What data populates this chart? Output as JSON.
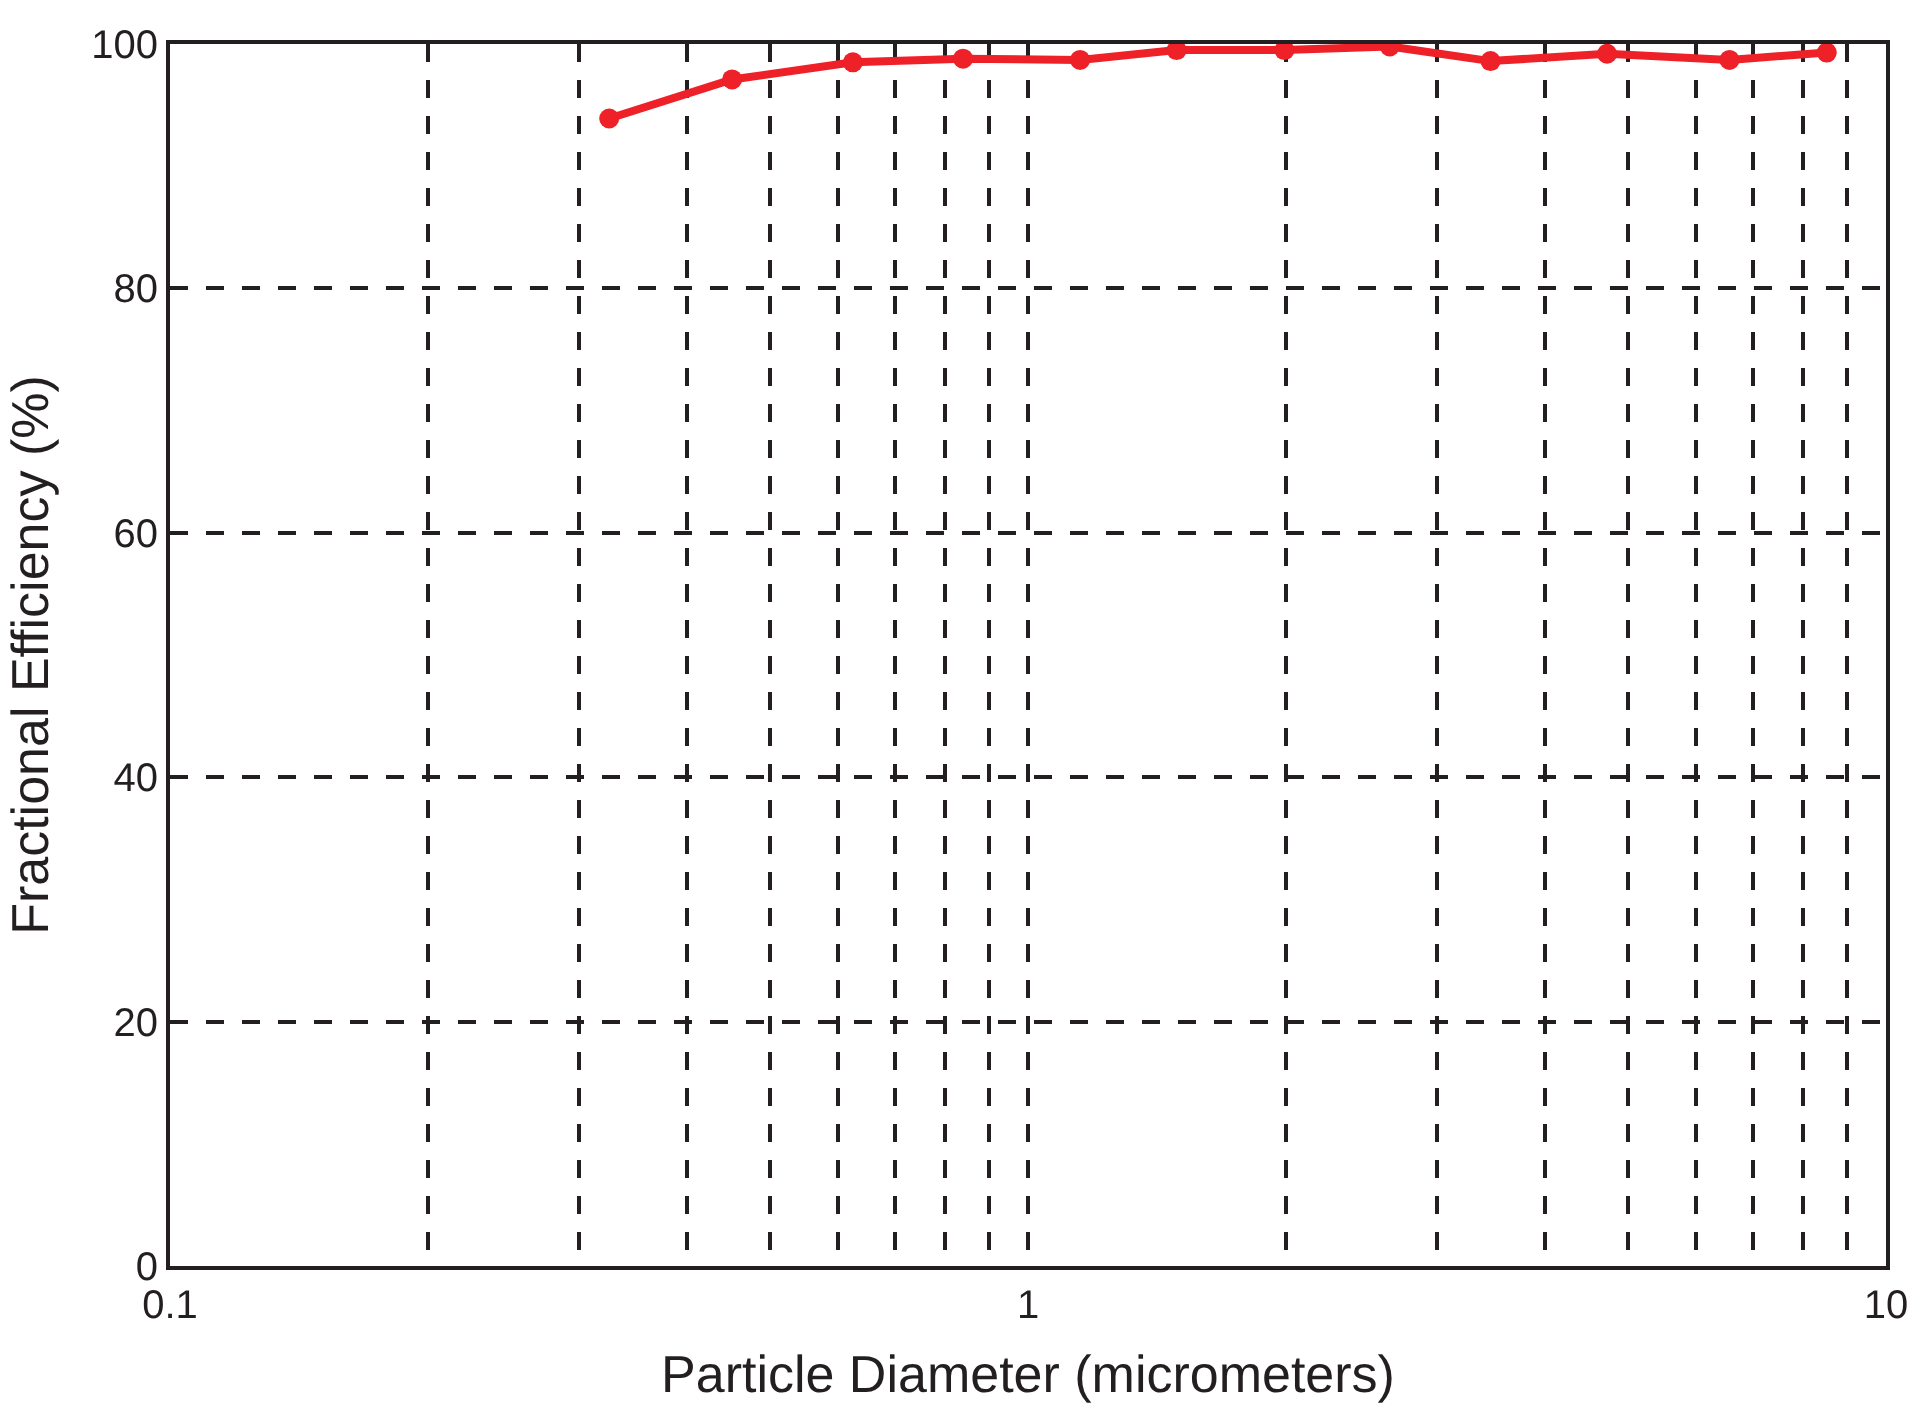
{
  "chart_data": {
    "type": "line",
    "xlabel": "Particle Diameter (micrometers)",
    "ylabel": "Fractional Efficiency (%)",
    "x": [
      0.325,
      0.452,
      0.625,
      0.84,
      1.15,
      1.49,
      1.99,
      2.64,
      3.46,
      4.73,
      6.57,
      8.53
    ],
    "series": [
      {
        "color": "#ee2028",
        "values": [
          93.9,
          97.1,
          98.5,
          98.8,
          98.7,
          99.5,
          99.5,
          99.8,
          98.6,
          99.2,
          98.7,
          99.3
        ]
      }
    ],
    "log": "x",
    "xlim": [
      0.1,
      10
    ],
    "ylim": [
      0,
      100
    ],
    "xticks": [
      0.1,
      {
        "value": 0.2,
        "label": null
      },
      {
        "value": 0.3,
        "label": null
      },
      {
        "value": 0.4,
        "label": null
      },
      {
        "value": 0.5,
        "label": null
      },
      {
        "value": 0.6,
        "label": null
      },
      {
        "value": 0.7,
        "label": null
      },
      {
        "value": 0.8,
        "label": null
      },
      {
        "value": 0.9,
        "label": null
      },
      1,
      {
        "value": 2,
        "label": null
      },
      {
        "value": 3,
        "label": null
      },
      {
        "value": 4,
        "label": null
      },
      {
        "value": 5,
        "label": null
      },
      {
        "value": 6,
        "label": null
      },
      {
        "value": 7,
        "label": null
      },
      {
        "value": 8,
        "label": null
      },
      {
        "value": 9,
        "label": null
      },
      10
    ],
    "yticks": [
      0,
      20,
      40,
      60,
      80,
      100
    ],
    "grid": true,
    "marker": "circle",
    "line_style": "solid"
  }
}
